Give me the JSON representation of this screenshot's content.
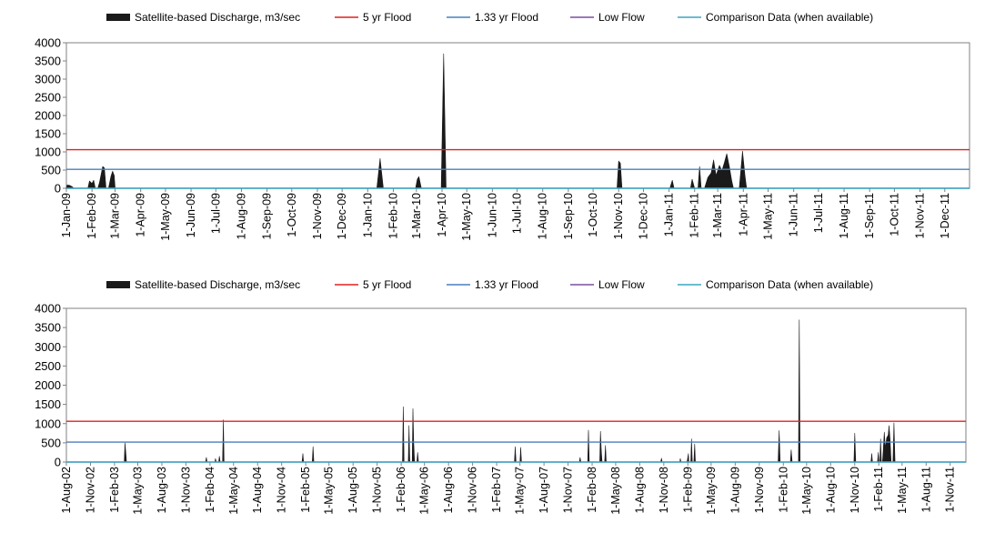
{
  "colors": {
    "discharge": "#1a1a1a",
    "flood5": "#e02020",
    "flood133": "#4a7fc1",
    "lowflow": "#7a4fa0",
    "comparison": "#3aa6c4",
    "axis": "#808080"
  },
  "chart_data": [
    {
      "type": "area",
      "legend": [
        {
          "key": "discharge",
          "label": "Satellite-based Discharge, m3/sec"
        },
        {
          "key": "flood5",
          "label": "5 yr Flood"
        },
        {
          "key": "flood133",
          "label": "1.33 yr Flood"
        },
        {
          "key": "lowflow",
          "label": "Low Flow"
        },
        {
          "key": "comparison",
          "label": "Comparison Data (when available)"
        }
      ],
      "x_start": "2009-01-01",
      "x_end": "2011-12-31",
      "ylim": [
        0,
        4000
      ],
      "yticks": [
        0,
        500,
        1000,
        1500,
        2000,
        2500,
        3000,
        3500,
        4000
      ],
      "xticks": [
        {
          "date": "2009-01-01",
          "label": "1-Jan-09"
        },
        {
          "date": "2009-02-01",
          "label": "1-Feb-09"
        },
        {
          "date": "2009-03-01",
          "label": "1-Mar-09"
        },
        {
          "date": "2009-04-01",
          "label": "1-Apr-09"
        },
        {
          "date": "2009-05-01",
          "label": "1-May-09"
        },
        {
          "date": "2009-06-01",
          "label": "1-Jun-09"
        },
        {
          "date": "2009-07-01",
          "label": "1-Jul-09"
        },
        {
          "date": "2009-08-01",
          "label": "1-Aug-09"
        },
        {
          "date": "2009-09-01",
          "label": "1-Sep-09"
        },
        {
          "date": "2009-10-01",
          "label": "1-Oct-09"
        },
        {
          "date": "2009-11-01",
          "label": "1-Nov-09"
        },
        {
          "date": "2009-12-01",
          "label": "1-Dec-09"
        },
        {
          "date": "2010-01-01",
          "label": "1-Jan-10"
        },
        {
          "date": "2010-02-01",
          "label": "1-Feb-10"
        },
        {
          "date": "2010-03-01",
          "label": "1-Mar-10"
        },
        {
          "date": "2010-04-01",
          "label": "1-Apr-10"
        },
        {
          "date": "2010-05-01",
          "label": "1-May-10"
        },
        {
          "date": "2010-06-01",
          "label": "1-Jun-10"
        },
        {
          "date": "2010-07-01",
          "label": "1-Jul-10"
        },
        {
          "date": "2010-08-01",
          "label": "1-Aug-10"
        },
        {
          "date": "2010-09-01",
          "label": "1-Sep-10"
        },
        {
          "date": "2010-10-01",
          "label": "1-Oct-10"
        },
        {
          "date": "2010-11-01",
          "label": "1-Nov-10"
        },
        {
          "date": "2010-12-01",
          "label": "1-Dec-10"
        },
        {
          "date": "2011-01-01",
          "label": "1-Jan-11"
        },
        {
          "date": "2011-02-01",
          "label": "1-Feb-11"
        },
        {
          "date": "2011-03-01",
          "label": "1-Mar-11"
        },
        {
          "date": "2011-04-01",
          "label": "1-Apr-11"
        },
        {
          "date": "2011-05-01",
          "label": "1-May-11"
        },
        {
          "date": "2011-06-01",
          "label": "1-Jun-11"
        },
        {
          "date": "2011-07-01",
          "label": "1-Jul-11"
        },
        {
          "date": "2011-08-01",
          "label": "1-Aug-11"
        },
        {
          "date": "2011-09-01",
          "label": "1-Sep-11"
        },
        {
          "date": "2011-10-01",
          "label": "1-Oct-11"
        },
        {
          "date": "2011-11-01",
          "label": "1-Nov-11"
        },
        {
          "date": "2011-12-01",
          "label": "1-Dec-11"
        }
      ],
      "flood5": 1060,
      "flood133": 520,
      "lowflow": 0,
      "comparison": 0,
      "discharge": [
        [
          "2009-01-01",
          0
        ],
        [
          "2009-01-02",
          90
        ],
        [
          "2009-01-05",
          80
        ],
        [
          "2009-01-08",
          40
        ],
        [
          "2009-01-10",
          0
        ],
        [
          "2009-01-27",
          0
        ],
        [
          "2009-01-29",
          200
        ],
        [
          "2009-02-01",
          130
        ],
        [
          "2009-02-03",
          220
        ],
        [
          "2009-02-05",
          0
        ],
        [
          "2009-02-08",
          0
        ],
        [
          "2009-02-10",
          150
        ],
        [
          "2009-02-14",
          600
        ],
        [
          "2009-02-16",
          560
        ],
        [
          "2009-02-18",
          0
        ],
        [
          "2009-02-21",
          0
        ],
        [
          "2009-02-24",
          330
        ],
        [
          "2009-02-26",
          470
        ],
        [
          "2009-02-28",
          350
        ],
        [
          "2009-03-01",
          0
        ],
        [
          "2010-01-12",
          0
        ],
        [
          "2010-01-16",
          820
        ],
        [
          "2010-01-20",
          0
        ],
        [
          "2010-02-28",
          0
        ],
        [
          "2010-03-02",
          250
        ],
        [
          "2010-03-04",
          320
        ],
        [
          "2010-03-07",
          0
        ],
        [
          "2010-03-31",
          0
        ],
        [
          "2010-04-03",
          3700
        ],
        [
          "2010-04-06",
          0
        ],
        [
          "2010-10-30",
          0
        ],
        [
          "2010-11-01",
          750
        ],
        [
          "2010-11-03",
          690
        ],
        [
          "2010-11-05",
          0
        ],
        [
          "2011-01-02",
          0
        ],
        [
          "2011-01-05",
          220
        ],
        [
          "2011-01-07",
          0
        ],
        [
          "2011-01-27",
          0
        ],
        [
          "2011-01-29",
          250
        ],
        [
          "2011-02-01",
          0
        ],
        [
          "2011-02-05",
          0
        ],
        [
          "2011-02-07",
          600
        ],
        [
          "2011-02-09",
          0
        ],
        [
          "2011-02-13",
          0
        ],
        [
          "2011-02-17",
          300
        ],
        [
          "2011-02-21",
          420
        ],
        [
          "2011-02-24",
          780
        ],
        [
          "2011-02-27",
          350
        ],
        [
          "2011-03-03",
          630
        ],
        [
          "2011-03-06",
          480
        ],
        [
          "2011-03-09",
          700
        ],
        [
          "2011-03-12",
          950
        ],
        [
          "2011-03-15",
          600
        ],
        [
          "2011-03-18",
          200
        ],
        [
          "2011-03-20",
          0
        ],
        [
          "2011-03-27",
          0
        ],
        [
          "2011-03-31",
          1020
        ],
        [
          "2011-04-03",
          350
        ],
        [
          "2011-04-05",
          0
        ]
      ]
    },
    {
      "type": "area",
      "legend": [
        {
          "key": "discharge",
          "label": "Satellite-based Discharge, m3/sec"
        },
        {
          "key": "flood5",
          "label": "5 yr Flood"
        },
        {
          "key": "flood133",
          "label": "1.33 yr Flood"
        },
        {
          "key": "lowflow",
          "label": "Low Flow"
        },
        {
          "key": "comparison",
          "label": "Comparison Data (when available)"
        }
      ],
      "x_start": "2002-08-01",
      "x_end": "2011-12-31",
      "ylim": [
        0,
        4000
      ],
      "yticks": [
        0,
        500,
        1000,
        1500,
        2000,
        2500,
        3000,
        3500,
        4000
      ],
      "xticks": [
        {
          "date": "2002-08-01",
          "label": "1-Aug-02"
        },
        {
          "date": "2002-11-01",
          "label": "1-Nov-02"
        },
        {
          "date": "2003-02-01",
          "label": "1-Feb-03"
        },
        {
          "date": "2003-05-01",
          "label": "1-May-03"
        },
        {
          "date": "2003-08-01",
          "label": "1-Aug-03"
        },
        {
          "date": "2003-11-01",
          "label": "1-Nov-03"
        },
        {
          "date": "2004-02-01",
          "label": "1-Feb-04"
        },
        {
          "date": "2004-05-01",
          "label": "1-May-04"
        },
        {
          "date": "2004-08-01",
          "label": "1-Aug-04"
        },
        {
          "date": "2004-11-01",
          "label": "1-Nov-04"
        },
        {
          "date": "2005-02-01",
          "label": "1-Feb-05"
        },
        {
          "date": "2005-05-01",
          "label": "1-May-05"
        },
        {
          "date": "2005-08-01",
          "label": "1-Aug-05"
        },
        {
          "date": "2005-11-01",
          "label": "1-Nov-05"
        },
        {
          "date": "2006-02-01",
          "label": "1-Feb-06"
        },
        {
          "date": "2006-05-01",
          "label": "1-May-06"
        },
        {
          "date": "2006-08-01",
          "label": "1-Aug-06"
        },
        {
          "date": "2006-11-01",
          "label": "1-Nov-06"
        },
        {
          "date": "2007-02-01",
          "label": "1-Feb-07"
        },
        {
          "date": "2007-05-01",
          "label": "1-May-07"
        },
        {
          "date": "2007-08-01",
          "label": "1-Aug-07"
        },
        {
          "date": "2007-11-01",
          "label": "1-Nov-07"
        },
        {
          "date": "2008-02-01",
          "label": "1-Feb-08"
        },
        {
          "date": "2008-05-01",
          "label": "1-May-08"
        },
        {
          "date": "2008-08-01",
          "label": "1-Aug-08"
        },
        {
          "date": "2008-11-01",
          "label": "1-Nov-08"
        },
        {
          "date": "2009-02-01",
          "label": "1-Feb-09"
        },
        {
          "date": "2009-05-01",
          "label": "1-May-09"
        },
        {
          "date": "2009-08-01",
          "label": "1-Aug-09"
        },
        {
          "date": "2009-11-01",
          "label": "1-Nov-09"
        },
        {
          "date": "2010-02-01",
          "label": "1-Feb-10"
        },
        {
          "date": "2010-05-01",
          "label": "1-May-10"
        },
        {
          "date": "2010-08-01",
          "label": "1-Aug-10"
        },
        {
          "date": "2010-11-01",
          "label": "1-Nov-10"
        },
        {
          "date": "2011-02-01",
          "label": "1-Feb-11"
        },
        {
          "date": "2011-05-01",
          "label": "1-May-11"
        },
        {
          "date": "2011-08-01",
          "label": "1-Aug-11"
        },
        {
          "date": "2011-11-01",
          "label": "1-Nov-11"
        }
      ],
      "flood5": 1060,
      "flood133": 520,
      "lowflow": 0,
      "comparison": 0,
      "discharge": [
        [
          "2003-03-10",
          0
        ],
        [
          "2003-03-13",
          500
        ],
        [
          "2003-03-16",
          250
        ],
        [
          "2003-03-19",
          0
        ],
        [
          "2004-01-15",
          0
        ],
        [
          "2004-01-18",
          120
        ],
        [
          "2004-01-21",
          0
        ],
        [
          "2004-02-20",
          0
        ],
        [
          "2004-02-22",
          90
        ],
        [
          "2004-02-25",
          0
        ],
        [
          "2004-03-05",
          0
        ],
        [
          "2004-03-08",
          150
        ],
        [
          "2004-03-11",
          0
        ],
        [
          "2004-03-20",
          0
        ],
        [
          "2004-03-23",
          1100
        ],
        [
          "2004-03-26",
          0
        ],
        [
          "2005-01-18",
          0
        ],
        [
          "2005-01-21",
          220
        ],
        [
          "2005-01-24",
          0
        ],
        [
          "2005-02-26",
          0
        ],
        [
          "2005-03-01",
          400
        ],
        [
          "2005-03-04",
          0
        ],
        [
          "2006-02-06",
          0
        ],
        [
          "2006-02-09",
          1440
        ],
        [
          "2006-02-12",
          0
        ],
        [
          "2006-02-28",
          0
        ],
        [
          "2006-03-03",
          950
        ],
        [
          "2006-03-06",
          0
        ],
        [
          "2006-03-15",
          0
        ],
        [
          "2006-03-18",
          1390
        ],
        [
          "2006-03-21",
          500
        ],
        [
          "2006-03-24",
          0
        ],
        [
          "2006-04-02",
          0
        ],
        [
          "2006-04-05",
          250
        ],
        [
          "2006-04-08",
          0
        ],
        [
          "2007-04-10",
          0
        ],
        [
          "2007-04-13",
          400
        ],
        [
          "2007-04-16",
          0
        ],
        [
          "2007-05-01",
          0
        ],
        [
          "2007-05-04",
          380
        ],
        [
          "2007-05-07",
          0
        ],
        [
          "2007-12-14",
          0
        ],
        [
          "2007-12-17",
          120
        ],
        [
          "2007-12-20",
          0
        ],
        [
          "2008-01-15",
          0
        ],
        [
          "2008-01-18",
          830
        ],
        [
          "2008-01-21",
          0
        ],
        [
          "2008-03-01",
          0
        ],
        [
          "2008-03-04",
          800
        ],
        [
          "2008-03-07",
          300
        ],
        [
          "2008-03-10",
          0
        ],
        [
          "2008-03-20",
          0
        ],
        [
          "2008-03-23",
          430
        ],
        [
          "2008-03-26",
          0
        ],
        [
          "2008-10-20",
          0
        ],
        [
          "2008-10-23",
          100
        ],
        [
          "2008-10-26",
          0
        ],
        [
          "2009-01-01",
          0
        ],
        [
          "2009-01-03",
          90
        ],
        [
          "2009-01-06",
          0
        ],
        [
          "2009-01-29",
          0
        ],
        [
          "2009-02-03",
          220
        ],
        [
          "2009-02-05",
          0
        ],
        [
          "2009-02-12",
          0
        ],
        [
          "2009-02-15",
          600
        ],
        [
          "2009-02-18",
          0
        ],
        [
          "2009-02-24",
          0
        ],
        [
          "2009-02-27",
          470
        ],
        [
          "2009-03-02",
          0
        ],
        [
          "2010-01-12",
          0
        ],
        [
          "2010-01-16",
          820
        ],
        [
          "2010-01-20",
          0
        ],
        [
          "2010-02-28",
          0
        ],
        [
          "2010-03-03",
          320
        ],
        [
          "2010-03-07",
          0
        ],
        [
          "2010-03-31",
          0
        ],
        [
          "2010-04-03",
          3700
        ],
        [
          "2010-04-06",
          0
        ],
        [
          "2010-10-29",
          0
        ],
        [
          "2010-11-01",
          750
        ],
        [
          "2010-11-05",
          0
        ],
        [
          "2011-01-02",
          0
        ],
        [
          "2011-01-05",
          220
        ],
        [
          "2011-01-08",
          0
        ],
        [
          "2011-01-27",
          0
        ],
        [
          "2011-01-30",
          250
        ],
        [
          "2011-02-02",
          0
        ],
        [
          "2011-02-05",
          0
        ],
        [
          "2011-02-08",
          600
        ],
        [
          "2011-02-11",
          0
        ],
        [
          "2011-02-15",
          0
        ],
        [
          "2011-02-18",
          300
        ],
        [
          "2011-02-22",
          780
        ],
        [
          "2011-02-26",
          350
        ],
        [
          "2011-03-03",
          630
        ],
        [
          "2011-03-09",
          700
        ],
        [
          "2011-03-12",
          950
        ],
        [
          "2011-03-16",
          600
        ],
        [
          "2011-03-20",
          0
        ],
        [
          "2011-03-27",
          0
        ],
        [
          "2011-03-31",
          1020
        ],
        [
          "2011-04-04",
          0
        ]
      ]
    }
  ]
}
